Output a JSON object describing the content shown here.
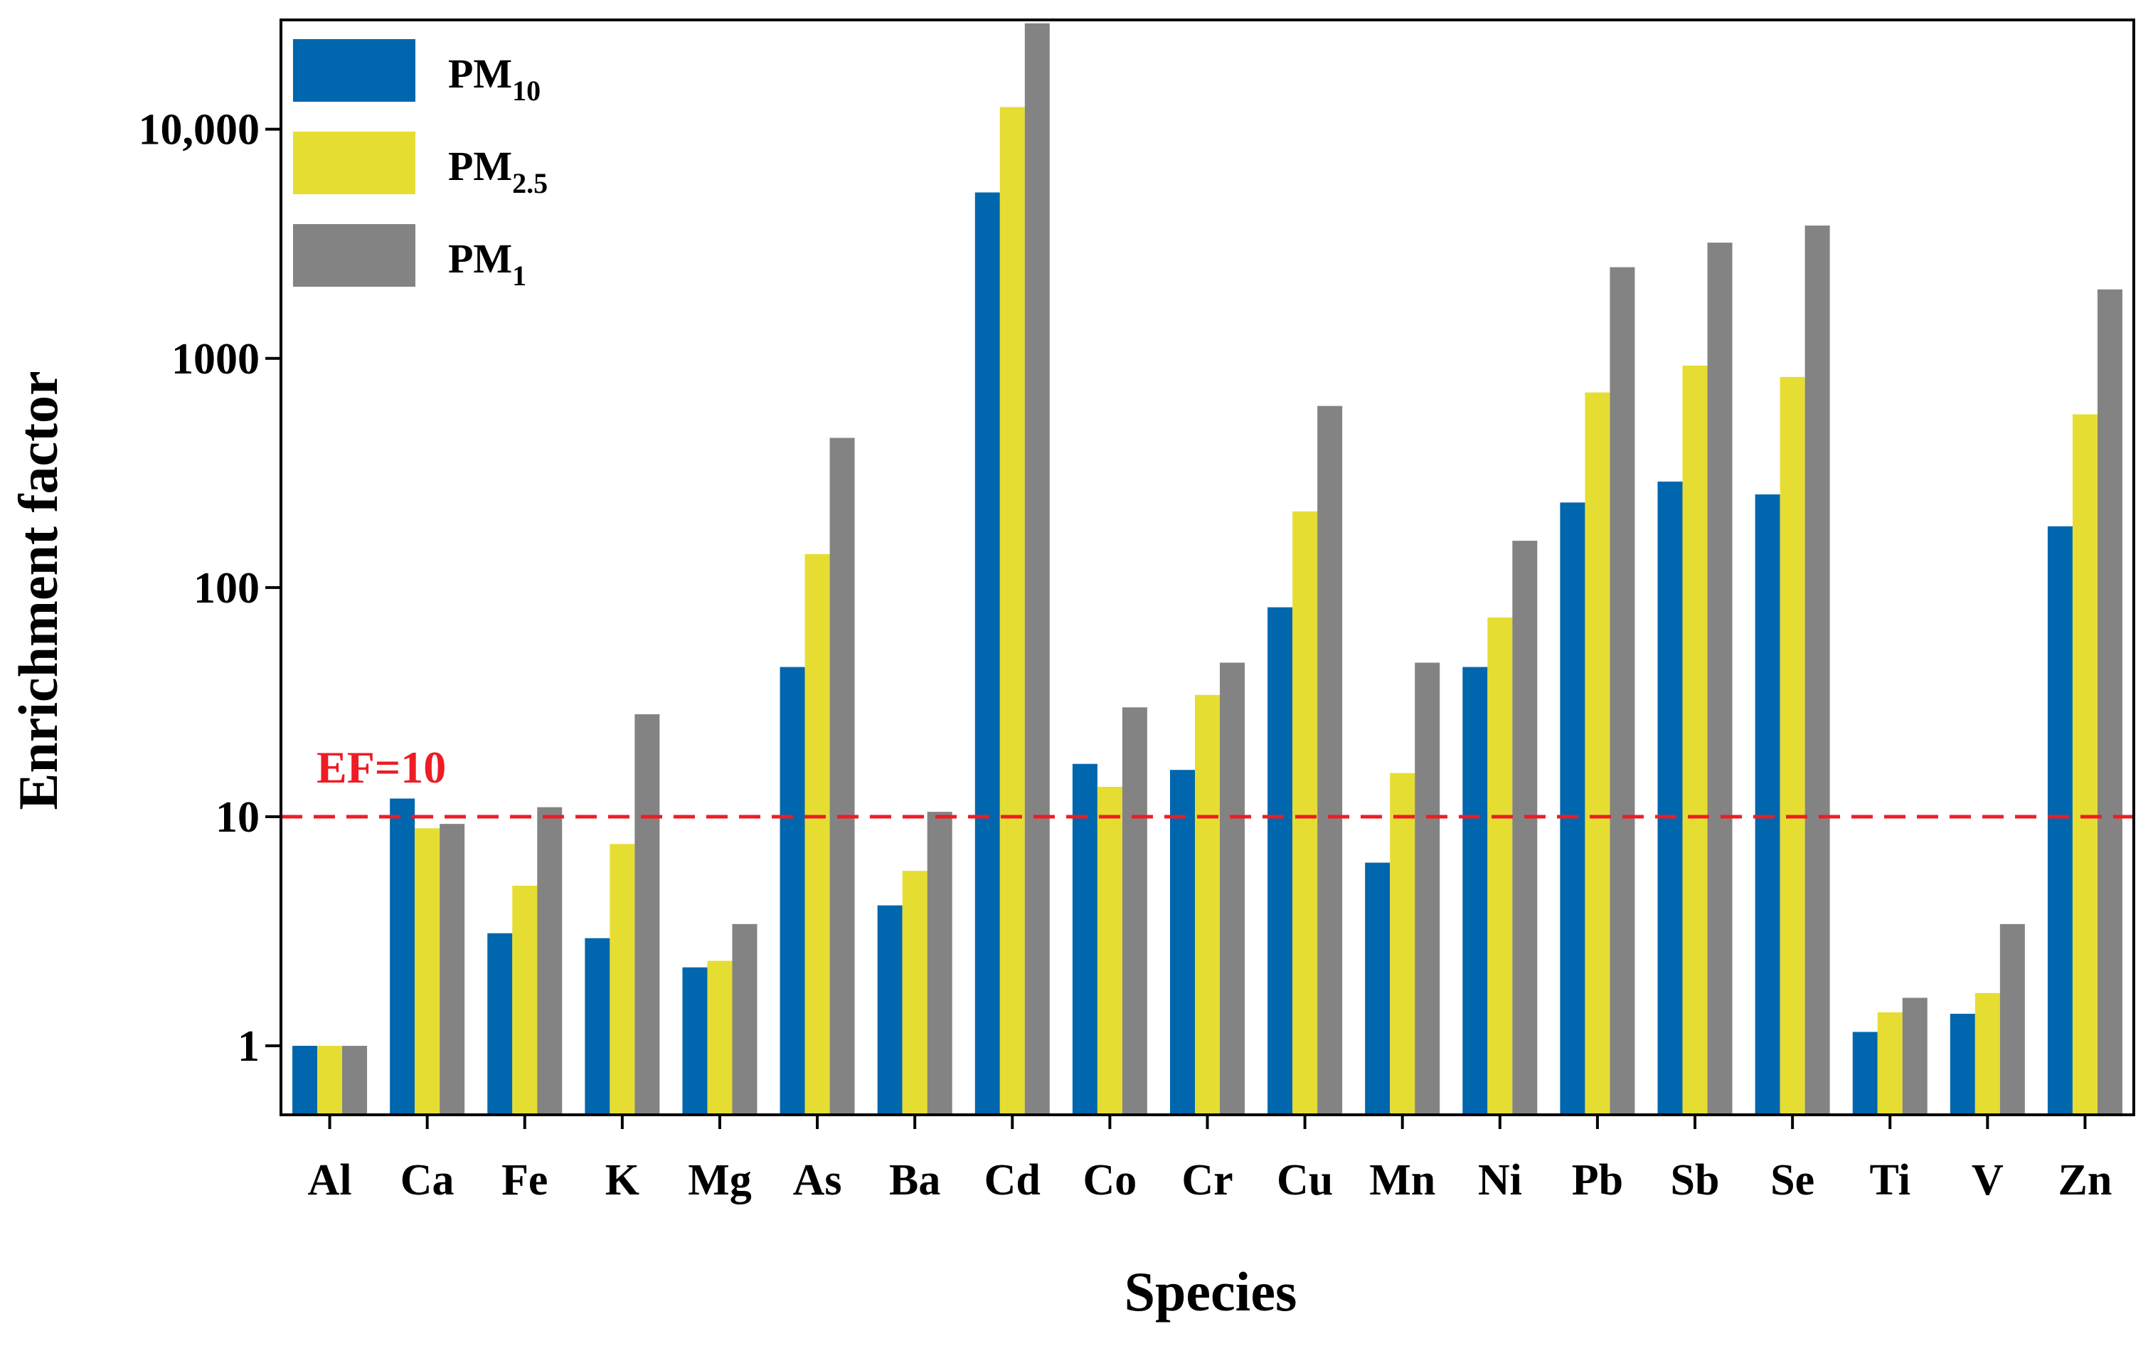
{
  "chart_data": {
    "type": "bar",
    "scale": "log",
    "categories": [
      "Al",
      "Ca",
      "Fe",
      "K",
      "Mg",
      "As",
      "Ba",
      "Cd",
      "Co",
      "Cr",
      "Cu",
      "Mn",
      "Ni",
      "Pb",
      "Sb",
      "Se",
      "Ti",
      "V",
      "Zn"
    ],
    "series": [
      {
        "name": "PM10",
        "base": "PM",
        "sub": "10",
        "color": "#0066ad",
        "values": [
          1,
          12,
          3.1,
          2.95,
          2.2,
          45,
          4.1,
          5300,
          17,
          16,
          82,
          6.3,
          45,
          235,
          290,
          255,
          1.15,
          1.38,
          185
        ]
      },
      {
        "name": "PM2.5",
        "base": "PM",
        "sub": "2.5",
        "color": "#e6dd33",
        "values": [
          1,
          8.9,
          5,
          7.6,
          2.35,
          140,
          5.8,
          12500,
          13.5,
          34,
          215,
          15.5,
          74,
          710,
          930,
          830,
          1.4,
          1.7,
          570
        ]
      },
      {
        "name": "PM1",
        "base": "PM",
        "sub": "1",
        "color": "#838383",
        "values": [
          1,
          9.3,
          11,
          28,
          3.4,
          450,
          10.5,
          29000,
          30,
          47,
          620,
          47,
          160,
          2500,
          3200,
          3800,
          1.62,
          3.4,
          2000
        ]
      }
    ],
    "ylim": [
      0.5,
      30000
    ],
    "yticks": [
      1,
      10,
      100,
      1000,
      10000
    ],
    "ytick_labels": [
      "1",
      "10",
      "100",
      "1000",
      "10,000"
    ],
    "xlabel": "Species",
    "ylabel": "Enrichment factor",
    "reference_line": {
      "value": 10,
      "label": "EF=10",
      "color": "#ee1c25"
    },
    "legend_position": "top-left"
  }
}
